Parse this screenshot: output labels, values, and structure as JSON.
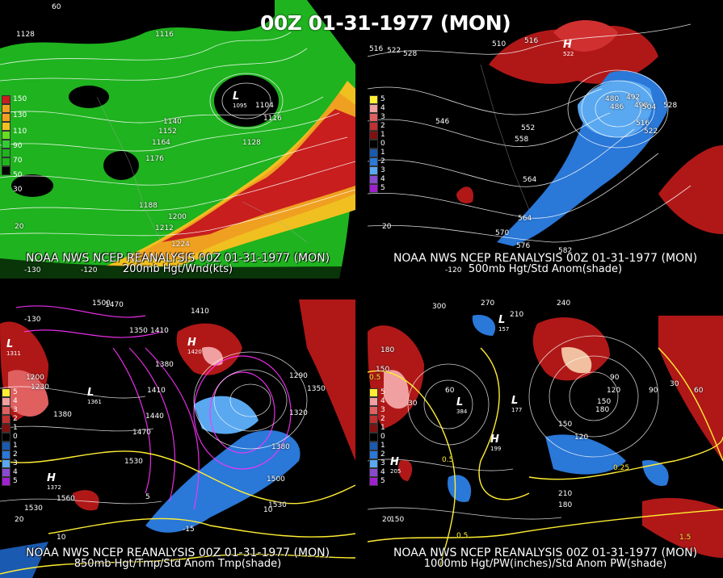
{
  "title": "00Z 01-31-1977 (MON)",
  "panels": [
    {
      "id": "200mb",
      "source_line": "NOAA NWS NCEP REANALYSIS 00Z 01-31-1977 (MON)",
      "caption": "200mb Hgt/Wnd(kts)",
      "legend": [
        "150",
        "130",
        "110",
        "90",
        "70",
        "50",
        "30"
      ],
      "contour_labels": [
        "1128",
        "1116",
        "1104",
        "1116",
        "1140",
        "1152",
        "1164",
        "1176",
        "1128",
        "1188",
        "1200",
        "1212",
        "1224"
      ],
      "lat_labels": [
        "60",
        "20"
      ],
      "lon_labels": [
        "-130",
        "-120"
      ],
      "low_center": "1095"
    },
    {
      "id": "500mb",
      "source_line": "NOAA NWS NCEP REANALYSIS 00Z 01-31-1977 (MON)",
      "caption": "500mb Hgt/Std Anom(shade)",
      "legend": [
        "5",
        "4",
        "3",
        "2",
        "1",
        "0",
        "1",
        "2",
        "3",
        "4",
        "5"
      ],
      "contour_labels": [
        "516",
        "522",
        "528",
        "510",
        "516",
        "546",
        "552",
        "558",
        "564",
        "564",
        "570",
        "576",
        "582",
        "480",
        "486",
        "492",
        "498",
        "504",
        "516",
        "522",
        "528"
      ],
      "lat_labels": [
        "20"
      ],
      "lon_labels": [
        "-120"
      ],
      "high_center": "522"
    },
    {
      "id": "850mb",
      "source_line": "NOAA NWS NCEP REANALYSIS 00Z 01-31-1977 (MON)",
      "caption": "850mb Hgt/Tmp/Std Anom Tmp(shade)",
      "legend": [
        "5",
        "4",
        "3",
        "2",
        "1",
        "0",
        "1",
        "2",
        "3",
        "4",
        "5"
      ],
      "contour_labels": [
        "1500",
        "1470",
        "1350",
        "1410",
        "1410",
        "1380",
        "1200",
        "1230",
        "1380",
        "1410",
        "1440",
        "1470",
        "1530",
        "1560",
        "1290",
        "1350",
        "1320",
        "1380",
        "1500",
        "1530",
        "1530",
        "5",
        "10",
        "10",
        "-15"
      ],
      "lat_labels": [
        "20"
      ],
      "lon_labels": [
        "-130"
      ],
      "centers": [
        "1311",
        "1361",
        "1372",
        "1420"
      ]
    },
    {
      "id": "1000mb",
      "source_line": "NOAA NWS NCEP REANALYSIS 00Z 01-31-1977 (MON)",
      "caption": "1000mb Hgt/PW(inches)/Std Anom PW(shade)",
      "legend": [
        "5",
        "4",
        "3",
        "2",
        "1",
        "0",
        "1",
        "2",
        "3",
        "4",
        "5"
      ],
      "contour_labels": [
        "300",
        "270",
        "240",
        "210",
        "180",
        "150",
        "60",
        "30",
        "90",
        "120",
        "150",
        "180",
        "150",
        "120",
        "90",
        "60",
        "30",
        "210",
        "180",
        "150",
        "0.5",
        "0.5",
        "0.5",
        "0.25",
        "1.5"
      ],
      "lat_labels": [
        "20"
      ],
      "lon_labels": [],
      "centers": [
        "199",
        "205",
        "384",
        "177",
        "157"
      ]
    }
  ],
  "colors": {
    "background": "#000000",
    "contour": "#ffffff",
    "temp_contour": "#ff33ff",
    "pw_contour": "#ffee33",
    "pos_anom": "#b01818",
    "neg_anom": "#2a78d8",
    "jet_core": "#c81e1e",
    "jet_mid": "#f0a020",
    "wind_light": "#33cc33",
    "wind_mid": "#66dd22"
  }
}
